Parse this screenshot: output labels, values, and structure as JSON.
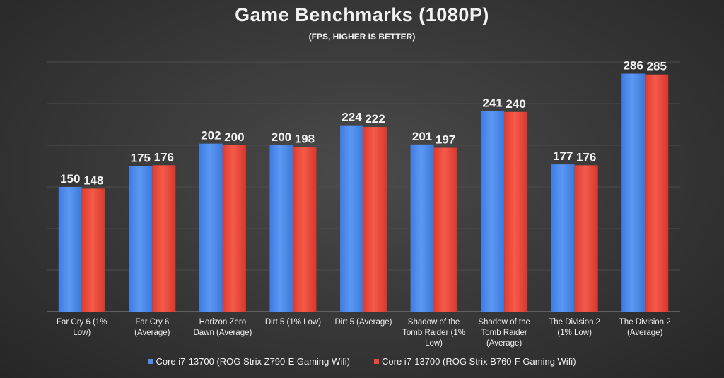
{
  "chart_data": {
    "type": "bar",
    "title": "Game Benchmarks (1080P)",
    "subtitle": "(FPS, HIGHER IS BETTER)",
    "xlabel": "",
    "ylabel": "",
    "ylim": [
      0,
      300
    ],
    "grid": true,
    "legend_position": "bottom",
    "categories": [
      [
        "Far Cry 6 (1%",
        "Low)"
      ],
      [
        "Far Cry 6",
        "(Average)"
      ],
      [
        "Horizon Zero",
        "Dawn (Average)"
      ],
      [
        "Dirt 5 (1%  Low)"
      ],
      [
        "Dirt 5 (Average)"
      ],
      [
        "Shadow of the",
        "Tomb Raider (1%",
        "Low)"
      ],
      [
        "Shadow of the",
        "Tomb Raider",
        "(Average)"
      ],
      [
        "The Division 2",
        "(1%  Low)"
      ],
      [
        "The Division 2",
        "(Average)"
      ]
    ],
    "series": [
      {
        "name": "Core i7-13700 (ROG Strix Z790-E Gaming Wifi)",
        "color": "#4f8ef0",
        "values": [
          150,
          175,
          202,
          200,
          224,
          201,
          241,
          177,
          286
        ]
      },
      {
        "name": "Core i7-13700 (ROG Strix B760-F Gaming Wifi)",
        "color": "#ea4a3c",
        "values": [
          148,
          176,
          200,
          198,
          222,
          197,
          240,
          176,
          285
        ]
      }
    ]
  }
}
